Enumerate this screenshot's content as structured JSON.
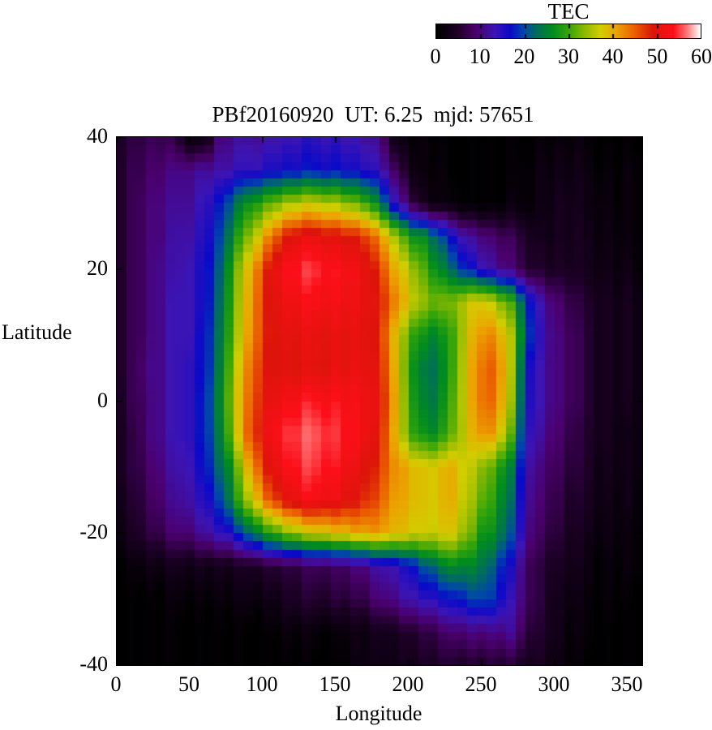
{
  "chart_data": {
    "type": "heatmap",
    "title": "PBf20160920  UT: 6.25  mjd: 57651",
    "xlabel": "Longitude",
    "ylabel": "Latitude",
    "xlim": [
      0,
      360
    ],
    "ylim": [
      -40,
      40
    ],
    "x_ticks": [
      0,
      50,
      100,
      150,
      200,
      250,
      300,
      350
    ],
    "y_ticks": [
      40,
      20,
      0,
      -20,
      -40
    ],
    "grid": false,
    "legend": "colorbar-top-right",
    "colorbar": {
      "label": "TEC",
      "min": 0,
      "max": 60,
      "ticks": [
        0,
        10,
        20,
        30,
        40,
        50,
        60
      ]
    },
    "lons": [
      0,
      10,
      20,
      30,
      40,
      50,
      60,
      70,
      80,
      90,
      100,
      110,
      120,
      130,
      140,
      150,
      160,
      170,
      180,
      190,
      200,
      210,
      220,
      230,
      240,
      250,
      260,
      270,
      280,
      290,
      300,
      310,
      320,
      330,
      340,
      350,
      360
    ],
    "lats": [
      40,
      35,
      30,
      25,
      20,
      15,
      10,
      5,
      0,
      -5,
      -10,
      -15,
      -20,
      -25,
      -30,
      -35,
      -40
    ],
    "values": [
      [
        5,
        6,
        7,
        7,
        6,
        2,
        1,
        9,
        11,
        12,
        12,
        13,
        13,
        14,
        14,
        14,
        13,
        12,
        10,
        3,
        1,
        1,
        0,
        0,
        0,
        0,
        0,
        0,
        0,
        1,
        1,
        1,
        1,
        0,
        0,
        0,
        0
      ],
      [
        5,
        7,
        8,
        9,
        10,
        11,
        12,
        12,
        13,
        14,
        15,
        16,
        16,
        17,
        17,
        17,
        16,
        15,
        13,
        9,
        3,
        1,
        1,
        0,
        0,
        0,
        0,
        0,
        1,
        2,
        2,
        2,
        2,
        1,
        1,
        1,
        1
      ],
      [
        5,
        7,
        9,
        10,
        11,
        12,
        14,
        17,
        22,
        27,
        30,
        33,
        35,
        36,
        36,
        35,
        33,
        30,
        24,
        15,
        8,
        3,
        1,
        1,
        0,
        0,
        0,
        1,
        1,
        2,
        3,
        3,
        2,
        2,
        1,
        1,
        1
      ],
      [
        5,
        7,
        9,
        10,
        12,
        13,
        15,
        19,
        26,
        33,
        40,
        46,
        50,
        51,
        51,
        50,
        49,
        47,
        42,
        36,
        28,
        26,
        21,
        16,
        12,
        10,
        8,
        7,
        5,
        3,
        3,
        3,
        3,
        2,
        2,
        1,
        1
      ],
      [
        5,
        7,
        9,
        11,
        12,
        14,
        16,
        21,
        30,
        39,
        47,
        52,
        54,
        55,
        55,
        54,
        53,
        51,
        47,
        41,
        36,
        31,
        26,
        22,
        18,
        14,
        11,
        9,
        6,
        5,
        4,
        4,
        3,
        3,
        2,
        2,
        1
      ],
      [
        5,
        7,
        9,
        11,
        13,
        14,
        16,
        22,
        31,
        40,
        48,
        51,
        52,
        53,
        53,
        53,
        52,
        51,
        49,
        44,
        38,
        34,
        32,
        33,
        37,
        38,
        35,
        30,
        20,
        13,
        9,
        7,
        5,
        4,
        3,
        3,
        2
      ],
      [
        5,
        7,
        9,
        11,
        13,
        14,
        17,
        23,
        32,
        41,
        48,
        50,
        50,
        51,
        51,
        51,
        51,
        50,
        48,
        40,
        31,
        27,
        25,
        30,
        38,
        42,
        42,
        35,
        22,
        14,
        10,
        8,
        6,
        4,
        3,
        3,
        2
      ],
      [
        5,
        7,
        10,
        11,
        13,
        15,
        17,
        24,
        34,
        43,
        49,
        50,
        49,
        50,
        50,
        51,
        51,
        51,
        49,
        41,
        29,
        24,
        23,
        30,
        39,
        44,
        45,
        35,
        18,
        13,
        10,
        8,
        6,
        4,
        3,
        3,
        2
      ],
      [
        4,
        7,
        9,
        11,
        13,
        15,
        18,
        25,
        35,
        44,
        50,
        52,
        53,
        54,
        54,
        54,
        53,
        52,
        50,
        42,
        30,
        25,
        24,
        31,
        39,
        44,
        44,
        34,
        17,
        13,
        10,
        8,
        6,
        4,
        3,
        3,
        2
      ],
      [
        4,
        6,
        9,
        11,
        13,
        15,
        18,
        24,
        34,
        45,
        51,
        54,
        55,
        56,
        56,
        55,
        54,
        52,
        49,
        41,
        31,
        27,
        26,
        32,
        38,
        42,
        41,
        31,
        16,
        12,
        9,
        7,
        5,
        4,
        3,
        2,
        2
      ],
      [
        4,
        6,
        8,
        10,
        12,
        14,
        17,
        22,
        28,
        40,
        48,
        52,
        54,
        55,
        55,
        54,
        52,
        50,
        47,
        43,
        40,
        38,
        38,
        40,
        37,
        34,
        30,
        24,
        14,
        10,
        8,
        6,
        5,
        3,
        3,
        2,
        2
      ],
      [
        3,
        5,
        7,
        9,
        11,
        13,
        15,
        19,
        26,
        35,
        43,
        48,
        51,
        53,
        53,
        52,
        50,
        48,
        45,
        42,
        40,
        38,
        38,
        40,
        36,
        32,
        28,
        22,
        13,
        9,
        7,
        5,
        4,
        3,
        2,
        2,
        1
      ],
      [
        2,
        4,
        6,
        7,
        9,
        10,
        12,
        14,
        16,
        22,
        27,
        31,
        34,
        36,
        38,
        39,
        40,
        41,
        41,
        40,
        38,
        37,
        37,
        38,
        34,
        28,
        26,
        20,
        12,
        8,
        6,
        4,
        3,
        2,
        2,
        1,
        1
      ],
      [
        1,
        1,
        2,
        2,
        3,
        3,
        3,
        3,
        3,
        4,
        5,
        6,
        6,
        7,
        8,
        8,
        9,
        10,
        12,
        14,
        16,
        20,
        23,
        26,
        26,
        24,
        20,
        15,
        9,
        6,
        4,
        3,
        2,
        1,
        1,
        1,
        1
      ],
      [
        0,
        0,
        0,
        0,
        1,
        1,
        1,
        1,
        1,
        2,
        2,
        3,
        4,
        5,
        5,
        6,
        6,
        7,
        9,
        11,
        13,
        14,
        15,
        17,
        19,
        20,
        18,
        13,
        9,
        6,
        3,
        2,
        1,
        1,
        1,
        0,
        0
      ],
      [
        0,
        0,
        0,
        0,
        0,
        0,
        0,
        0,
        0,
        0,
        0,
        1,
        1,
        1,
        1,
        1,
        2,
        2,
        3,
        4,
        5,
        6,
        7,
        9,
        10,
        10,
        10,
        11,
        7,
        5,
        3,
        1,
        1,
        0,
        0,
        0,
        0
      ],
      [
        0,
        0,
        0,
        0,
        0,
        0,
        0,
        0,
        0,
        0,
        0,
        0,
        0,
        0,
        0,
        0,
        1,
        2,
        2,
        3,
        3,
        4,
        4,
        5,
        5,
        5,
        5,
        5,
        4,
        4,
        2,
        1,
        0,
        0,
        0,
        0,
        0
      ]
    ],
    "palette_stops": [
      [
        0.0,
        0,
        0,
        0
      ],
      [
        0.08,
        30,
        0,
        40
      ],
      [
        0.15,
        75,
        0,
        110
      ],
      [
        0.22,
        60,
        20,
        180
      ],
      [
        0.28,
        10,
        10,
        200
      ],
      [
        0.33,
        0,
        70,
        170
      ],
      [
        0.38,
        0,
        110,
        90
      ],
      [
        0.44,
        0,
        140,
        30
      ],
      [
        0.5,
        55,
        165,
        10
      ],
      [
        0.56,
        140,
        185,
        0
      ],
      [
        0.62,
        210,
        205,
        0
      ],
      [
        0.68,
        235,
        165,
        0
      ],
      [
        0.75,
        235,
        95,
        0
      ],
      [
        0.82,
        220,
        20,
        10
      ],
      [
        0.9,
        252,
        15,
        25
      ],
      [
        0.95,
        255,
        120,
        120
      ],
      [
        1.0,
        255,
        255,
        255
      ]
    ]
  }
}
